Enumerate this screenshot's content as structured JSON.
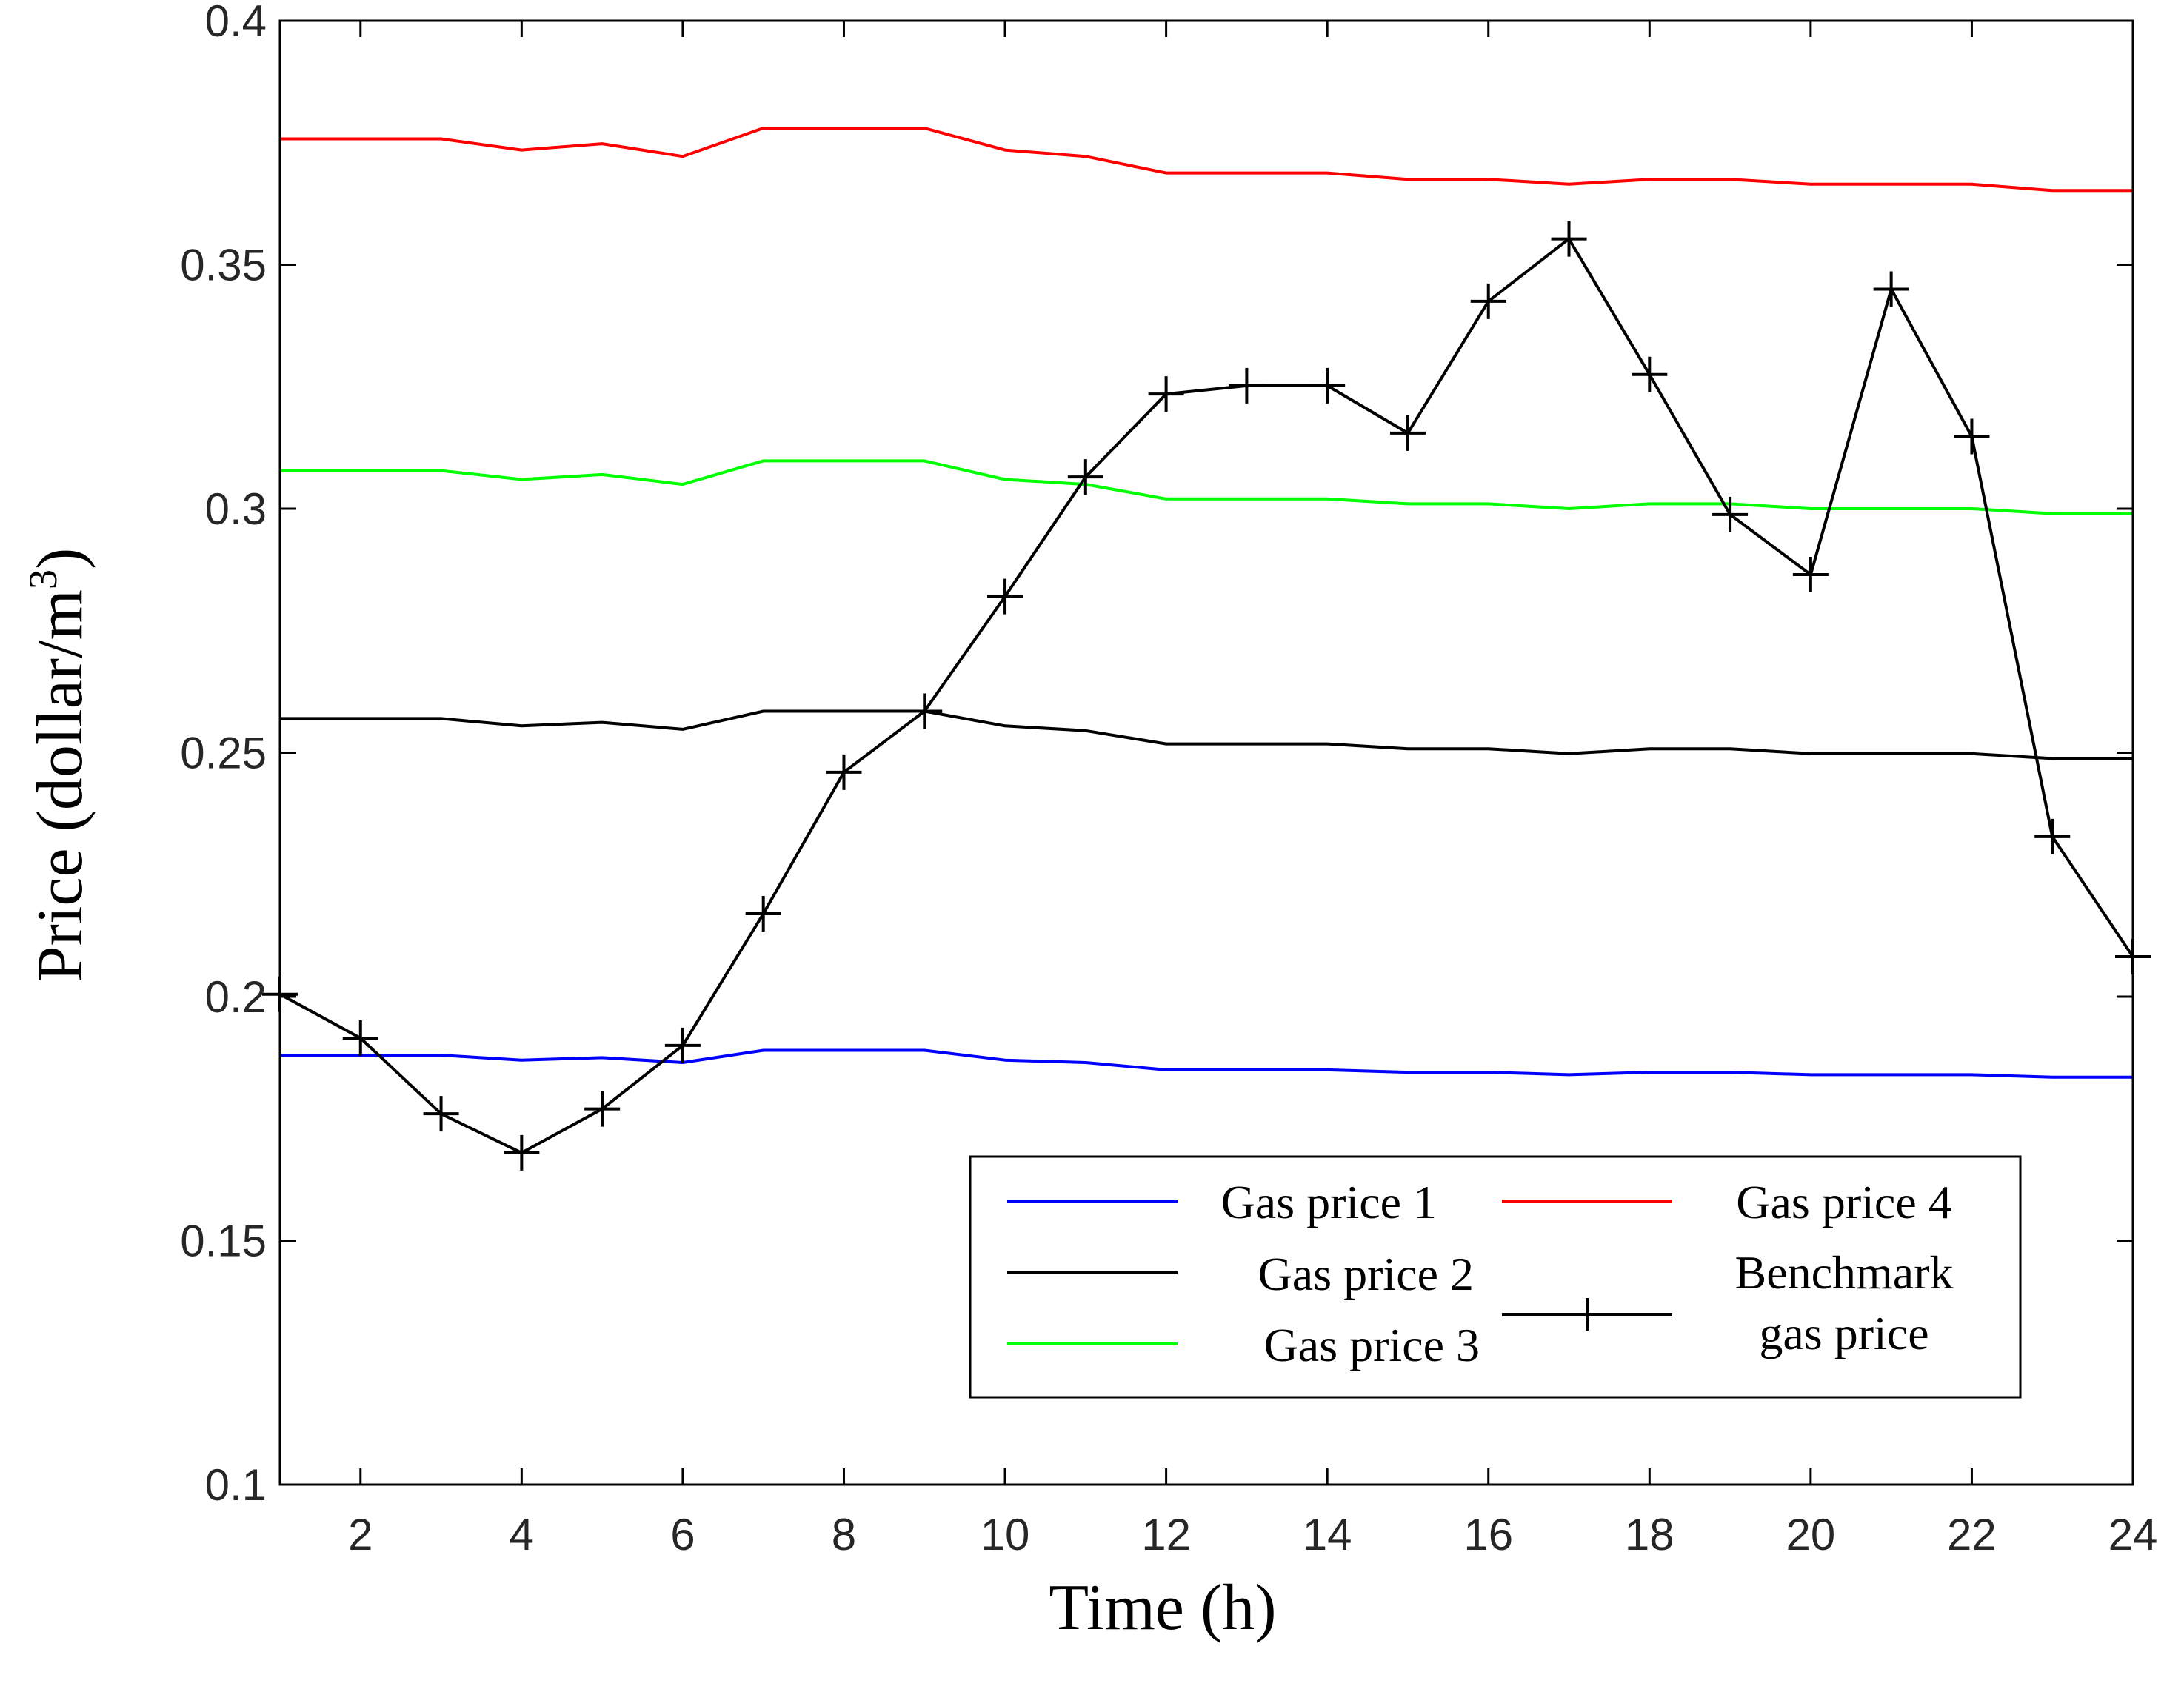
{
  "chart_data": {
    "type": "line",
    "xlabel": "Time (h)",
    "ylabel": "Price (dollar/m",
    "ylabel_superscript": "3",
    "ylabel_suffix": ")",
    "xlim": [
      1,
      24
    ],
    "ylim": [
      0.1,
      0.4
    ],
    "xticks": [
      2,
      4,
      6,
      8,
      10,
      12,
      14,
      16,
      18,
      20,
      22,
      24
    ],
    "xtick_labels": [
      "2",
      "4",
      "6",
      "8",
      "10",
      "12",
      "14",
      "16",
      "18",
      "20",
      "22",
      "24"
    ],
    "yticks": [
      0.1,
      0.15,
      0.2,
      0.25,
      0.3,
      0.35,
      0.4
    ],
    "ytick_labels": [
      "0.1",
      "0.15",
      "0.2",
      "0.25",
      "0.3",
      "0.35",
      "0.4"
    ],
    "x": [
      1,
      2,
      3,
      4,
      5,
      6,
      7,
      8,
      9,
      10,
      11,
      12,
      13,
      14,
      15,
      16,
      17,
      18,
      19,
      20,
      21,
      22,
      23,
      24
    ],
    "series": [
      {
        "name": "Gas price 1",
        "color": "#0000ff",
        "marker": "none",
        "values": [
          0.188,
          0.188,
          0.188,
          0.187,
          0.1875,
          0.1865,
          0.189,
          0.189,
          0.189,
          0.187,
          0.1865,
          0.185,
          0.185,
          0.185,
          0.1845,
          0.1845,
          0.184,
          0.1845,
          0.1845,
          0.184,
          0.184,
          0.184,
          0.1835,
          0.1835
        ]
      },
      {
        "name": "Gas price 2",
        "color": "#000000",
        "marker": "none",
        "values": [
          0.257,
          0.257,
          0.257,
          0.2555,
          0.2562,
          0.2548,
          0.2585,
          0.2585,
          0.2585,
          0.2555,
          0.2545,
          0.2518,
          0.2518,
          0.2518,
          0.2508,
          0.2508,
          0.2498,
          0.2508,
          0.2508,
          0.2498,
          0.2498,
          0.2498,
          0.2488,
          0.2488
        ]
      },
      {
        "name": "Gas price 3",
        "color": "#00ff00",
        "marker": "none",
        "values": [
          0.3078,
          0.3078,
          0.3078,
          0.306,
          0.307,
          0.305,
          0.3098,
          0.3098,
          0.3098,
          0.306,
          0.305,
          0.302,
          0.302,
          0.302,
          0.301,
          0.301,
          0.3,
          0.301,
          0.301,
          0.3,
          0.3,
          0.3,
          0.299,
          0.299
        ]
      },
      {
        "name": "Gas price 4",
        "color": "#ff0000",
        "marker": "none",
        "values": [
          0.3758,
          0.3758,
          0.3758,
          0.3735,
          0.3748,
          0.3722,
          0.378,
          0.378,
          0.378,
          0.3735,
          0.3722,
          0.3688,
          0.3688,
          0.3688,
          0.3675,
          0.3675,
          0.3665,
          0.3675,
          0.3675,
          0.3665,
          0.3665,
          0.3665,
          0.3652,
          0.3652
        ]
      },
      {
        "name": "Benchmark gas price",
        "color": "#000000",
        "marker": "+",
        "values": [
          0.2005,
          0.1915,
          0.176,
          0.168,
          0.177,
          0.19,
          0.217,
          0.246,
          0.2585,
          0.282,
          0.3065,
          0.3235,
          0.3252,
          0.3252,
          0.3155,
          0.3425,
          0.3553,
          0.3275,
          0.2988,
          0.2865,
          0.345,
          0.3148,
          0.2328,
          0.2082
        ]
      }
    ],
    "legend": {
      "position": "lower-right",
      "entries": [
        {
          "lines": [
            "Gas price 1"
          ]
        },
        {
          "lines": [
            "Gas price 2"
          ]
        },
        {
          "lines": [
            "Gas price 3"
          ]
        },
        {
          "lines": [
            "Gas price 4"
          ]
        },
        {
          "lines": [
            "Benchmark",
            "gas price"
          ]
        }
      ]
    },
    "grid": false
  }
}
